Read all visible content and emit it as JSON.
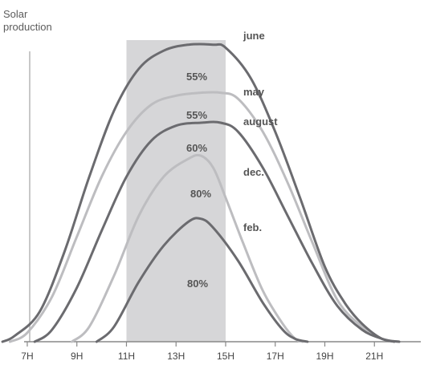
{
  "chart_data": {
    "type": "area",
    "ylabel_lines": [
      "Solar",
      "production"
    ],
    "x_ticks": [
      "7H",
      "9H",
      "11H",
      "13H",
      "15H",
      "17H",
      "19H",
      "21H"
    ],
    "x_tick_hours": [
      7,
      9,
      11,
      13,
      15,
      17,
      19,
      21
    ],
    "xlim": [
      5.9,
      23.0
    ],
    "ylim": [
      0,
      100
    ],
    "highlight_range": [
      11,
      15
    ],
    "highlight_color": "#d6d6d8",
    "series": [
      {
        "name": "june",
        "color": "#6b6b6f",
        "points": [
          [
            6.0,
            0
          ],
          [
            6.5,
            2
          ],
          [
            7.5,
            10
          ],
          [
            8.5,
            30
          ],
          [
            9.5,
            55
          ],
          [
            10.5,
            77
          ],
          [
            11.5,
            91
          ],
          [
            12.5,
            97
          ],
          [
            13.5,
            99
          ],
          [
            14.5,
            99
          ],
          [
            15.0,
            98
          ],
          [
            16.0,
            88
          ],
          [
            17.0,
            70
          ],
          [
            18.0,
            48
          ],
          [
            19.0,
            25
          ],
          [
            19.8,
            13
          ],
          [
            20.5,
            6
          ],
          [
            21.3,
            1
          ],
          [
            22.0,
            0
          ]
        ],
        "label_pct": "55%"
      },
      {
        "name": "may",
        "color": "#bdbdc0",
        "points": [
          [
            6.3,
            0
          ],
          [
            7.0,
            3
          ],
          [
            8.0,
            15
          ],
          [
            9.0,
            35
          ],
          [
            10.0,
            55
          ],
          [
            11.0,
            70
          ],
          [
            12.0,
            79
          ],
          [
            13.0,
            82
          ],
          [
            14.0,
            83
          ],
          [
            14.8,
            83
          ],
          [
            15.5,
            81
          ],
          [
            16.5,
            70
          ],
          [
            17.5,
            53
          ],
          [
            18.5,
            33
          ],
          [
            19.5,
            14
          ],
          [
            20.5,
            5
          ],
          [
            21.3,
            1
          ],
          [
            22.0,
            0
          ]
        ],
        "label_pct": "55%"
      },
      {
        "name": "august",
        "color": "#6b6b6f",
        "points": [
          [
            7.3,
            0
          ],
          [
            8.0,
            4
          ],
          [
            9.0,
            18
          ],
          [
            10.0,
            37
          ],
          [
            11.0,
            55
          ],
          [
            12.0,
            67
          ],
          [
            13.0,
            72
          ],
          [
            14.0,
            73
          ],
          [
            14.8,
            73
          ],
          [
            15.5,
            70
          ],
          [
            16.5,
            58
          ],
          [
            17.5,
            42
          ],
          [
            18.5,
            26
          ],
          [
            19.5,
            12
          ],
          [
            20.5,
            4
          ],
          [
            21.3,
            1
          ],
          [
            21.8,
            0
          ]
        ],
        "label_pct": "60%"
      },
      {
        "name": "dec.",
        "color": "#bdbdc0",
        "points": [
          [
            8.8,
            0
          ],
          [
            9.5,
            5
          ],
          [
            10.5,
            22
          ],
          [
            11.5,
            42
          ],
          [
            12.5,
            55
          ],
          [
            13.5,
            61
          ],
          [
            14.0,
            62
          ],
          [
            14.5,
            58
          ],
          [
            15.0,
            48
          ],
          [
            15.7,
            33
          ],
          [
            16.5,
            17
          ],
          [
            17.3,
            6
          ],
          [
            17.8,
            1
          ],
          [
            18.1,
            0
          ]
        ],
        "label_pct": "80%"
      },
      {
        "name": "feb.",
        "color": "#6b6b6f",
        "points": [
          [
            9.8,
            0
          ],
          [
            10.5,
            5
          ],
          [
            11.5,
            20
          ],
          [
            12.5,
            32
          ],
          [
            13.5,
            40
          ],
          [
            14.0,
            41
          ],
          [
            14.5,
            38
          ],
          [
            15.5,
            27
          ],
          [
            16.5,
            13
          ],
          [
            17.3,
            4
          ],
          [
            17.8,
            1
          ],
          [
            18.3,
            0
          ]
        ],
        "label_pct": "80%"
      }
    ]
  }
}
